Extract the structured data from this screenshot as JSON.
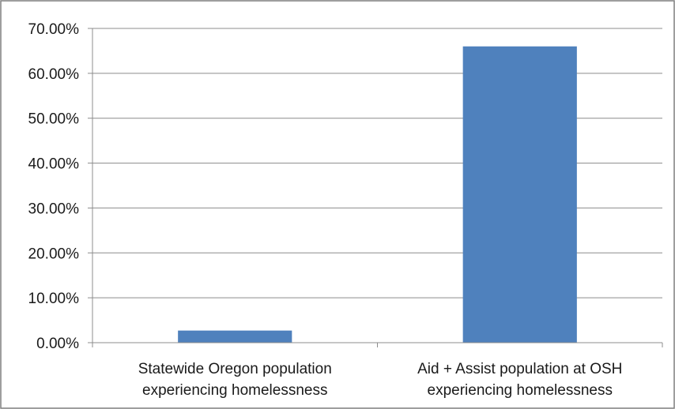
{
  "chart_data": {
    "type": "bar",
    "categories": [
      [
        "Statewide Oregon population",
        "experiencing homelessness"
      ],
      [
        "Aid + Assist population at OSH",
        "experiencing homelessness"
      ]
    ],
    "values": [
      2.7,
      66.0
    ],
    "ylim": [
      0,
      70
    ],
    "yticks": [
      0,
      10,
      20,
      30,
      40,
      50,
      60,
      70
    ],
    "ytick_labels": [
      "0.00%",
      "10.00%",
      "20.00%",
      "30.00%",
      "40.00%",
      "50.00%",
      "60.00%",
      "70.00%"
    ],
    "title": "",
    "xlabel": "",
    "ylabel": "",
    "grid": true,
    "legend": "none",
    "colors": {
      "bar": "#4f81bd",
      "grid": "#8c8c8c",
      "axis": "#8c8c8c",
      "border": "#7f7f7f"
    }
  }
}
